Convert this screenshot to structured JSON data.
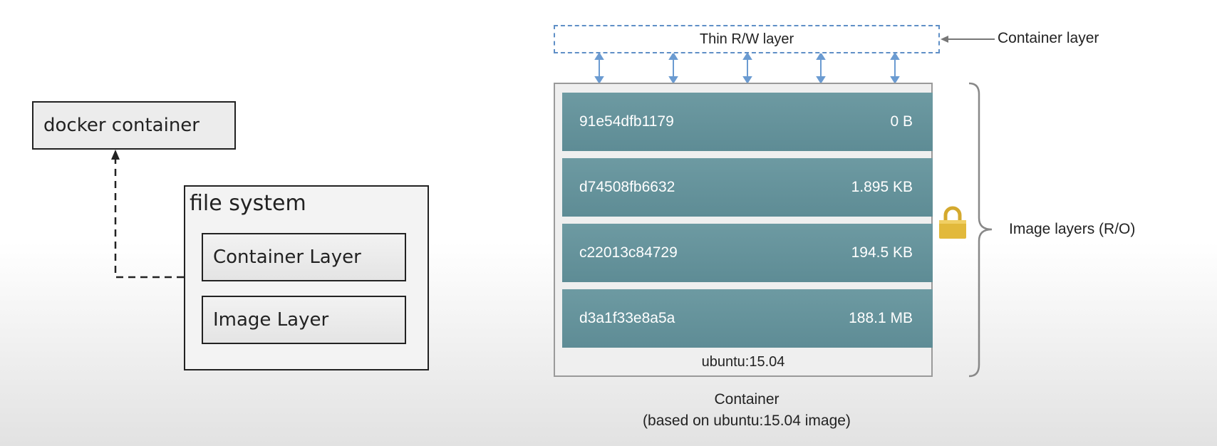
{
  "left_diagram": {
    "container_label": "docker container",
    "fs_title": "file system",
    "container_layer_label": "Container Layer",
    "image_layer_label": "Image Layer"
  },
  "right_diagram": {
    "rw_layer_label": "Thin R/W layer",
    "container_layer_annotation": "Container layer",
    "image_layers_annotation": "Image layers (R/O)",
    "layers": [
      {
        "id": "91e54dfb1179",
        "size": "0 B"
      },
      {
        "id": "d74508fb6632",
        "size": "1.895 KB"
      },
      {
        "id": "c22013c84729",
        "size": "194.5 KB"
      },
      {
        "id": "d3a1f33e8a5a",
        "size": "188.1 MB"
      }
    ],
    "base_image_label": "ubuntu:15.04",
    "caption_line1": "Container",
    "caption_line2": "(based on ubuntu:15.04 image)"
  },
  "colors": {
    "layer_fill": "#6a96a0",
    "dashed_border": "#5f8fc6",
    "lock": "#e2b93b"
  },
  "icons": [
    "lock-icon",
    "arrow-up-icon",
    "arrow-left-icon",
    "double-arrow-icon",
    "curly-brace-icon"
  ]
}
